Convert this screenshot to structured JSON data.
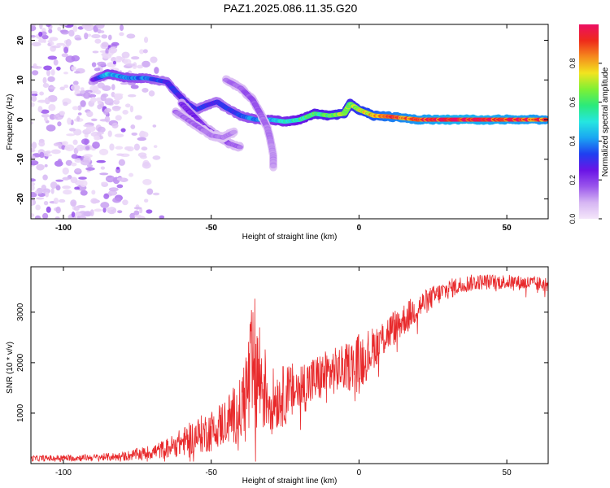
{
  "title": "PAZ1.2025.086.11.35.G20",
  "colors": {
    "snr_line": "#e8292b",
    "frame": "#000000",
    "colormap": [
      "#f4e6fa",
      "#d6b6f3",
      "#9a55ec",
      "#6a14e6",
      "#1f3ff0",
      "#1aa6f2",
      "#25e6e0",
      "#2bea7a",
      "#7ff034",
      "#f2e41f",
      "#f58a1d",
      "#ee2a1b",
      "#ec0f63"
    ]
  },
  "chart_data": [
    {
      "type": "heatmap",
      "xlabel": "Height of straight line (km)",
      "ylabel": "Frequency (Hz)",
      "xlim": [
        -111,
        64
      ],
      "ylim": [
        -25,
        24
      ],
      "xticks": [
        -100,
        -50,
        0,
        50
      ],
      "yticks": [
        -20,
        -10,
        0,
        10,
        20
      ],
      "grid": false,
      "colorbar": {
        "label": "Normalized spectral amplitude",
        "range": [
          0,
          1
        ],
        "ticks": [
          0,
          0.2,
          0.4,
          0.6,
          0.8
        ],
        "tick_labels": [
          "0.0",
          "0.2",
          "0.4",
          "0.6",
          "0.8"
        ]
      },
      "ridges": [
        {
          "points": [
            [
              -90,
              10
            ],
            [
              -85,
              11.5
            ],
            [
              -78,
              10.5
            ],
            [
              -72,
              10.5
            ],
            [
              -65,
              9.5
            ],
            [
              -62,
              7
            ],
            [
              -58,
              4
            ],
            [
              -55,
              2.5
            ],
            [
              -52,
              3.5
            ],
            [
              -48,
              4.5
            ],
            [
              -45,
              3
            ],
            [
              -40,
              1
            ],
            [
              -35,
              0
            ],
            [
              -30,
              0
            ],
            [
              -25,
              -0.5
            ],
            [
              -20,
              0
            ],
            [
              -15,
              1.5
            ],
            [
              -10,
              1
            ],
            [
              -5,
              1.5
            ],
            [
              -3,
              4
            ],
            [
              0,
              2.5
            ],
            [
              5,
              1
            ],
            [
              10,
              0.8
            ],
            [
              20,
              0
            ],
            [
              30,
              0
            ],
            [
              40,
              0
            ],
            [
              50,
              0
            ],
            [
              64,
              0
            ]
          ],
          "amplitude": [
            0.22,
            0.45,
            0.4,
            0.38,
            0.3,
            0.3,
            0.28,
            0.3,
            0.32,
            0.3,
            0.3,
            0.35,
            0.4,
            0.45,
            0.5,
            0.55,
            0.6,
            0.62,
            0.68,
            0.65,
            0.7,
            0.78,
            0.85,
            0.9,
            0.95,
            0.95,
            0.92,
            0.9
          ]
        },
        {
          "points": [
            [
              -60,
              4
            ],
            [
              -56,
              1
            ],
            [
              -52,
              -2
            ],
            [
              -48,
              -4
            ],
            [
              -44,
              -6
            ],
            [
              -40,
              -7
            ]
          ],
          "amplitude": [
            0.22,
            0.24,
            0.2,
            0.2,
            0.18,
            0.15
          ]
        },
        {
          "points": [
            [
              -45,
              10
            ],
            [
              -40,
              8
            ],
            [
              -36,
              5
            ],
            [
              -33,
              1
            ],
            [
              -31,
              -2
            ],
            [
              -30,
              -5
            ],
            [
              -29,
              -9
            ],
            [
              -29,
              -12
            ]
          ],
          "amplitude": [
            0.14,
            0.16,
            0.18,
            0.16,
            0.14,
            0.13,
            0.12,
            0.12
          ]
        },
        {
          "points": [
            [
              -62,
              2
            ],
            [
              -56,
              -1
            ],
            [
              -50,
              -4
            ],
            [
              -46,
              -4.5
            ],
            [
              -42,
              -3
            ]
          ],
          "amplitude": [
            0.15,
            0.16,
            0.14,
            0.14,
            0.12
          ]
        }
      ],
      "noise_region": {
        "x": [
          -111,
          -65
        ],
        "y": [
          -25,
          24
        ],
        "level": [
          0.02,
          0.15
        ]
      }
    },
    {
      "type": "line",
      "xlabel": "Height of straight line (km)",
      "ylabel": "SNR (10 * v/v)",
      "xlim": [
        -111,
        64
      ],
      "ylim": [
        0,
        3900
      ],
      "xticks": [
        -100,
        -50,
        0,
        50
      ],
      "yticks": [
        1000,
        2000,
        3000
      ],
      "grid": false,
      "series": [
        {
          "points": [
            [
              -111,
              100
            ],
            [
              -90,
              120
            ],
            [
              -80,
              140
            ],
            [
              -70,
              230
            ],
            [
              -65,
              300
            ],
            [
              -60,
              420
            ],
            [
              -55,
              550
            ],
            [
              -50,
              650
            ],
            [
              -45,
              850
            ],
            [
              -40,
              1050
            ],
            [
              -37,
              1600
            ],
            [
              -35,
              1900
            ],
            [
              -32,
              1500
            ],
            [
              -30,
              1250
            ],
            [
              -25,
              1350
            ],
            [
              -20,
              1500
            ],
            [
              -15,
              1650
            ],
            [
              -10,
              1800
            ],
            [
              -5,
              1900
            ],
            [
              0,
              2000
            ],
            [
              5,
              2300
            ],
            [
              10,
              2600
            ],
            [
              15,
              2850
            ],
            [
              20,
              3100
            ],
            [
              25,
              3300
            ],
            [
              30,
              3450
            ],
            [
              35,
              3550
            ],
            [
              40,
              3600
            ],
            [
              50,
              3600
            ],
            [
              64,
              3550
            ]
          ],
          "amplitude": [
            60,
            70,
            90,
            150,
            200,
            280,
            360,
            420,
            500,
            650,
            1300,
            1500,
            900,
            650,
            600,
            550,
            500,
            480,
            450,
            600,
            420,
            380,
            330,
            280,
            230,
            200,
            180,
            160,
            150,
            150
          ]
        }
      ]
    }
  ]
}
